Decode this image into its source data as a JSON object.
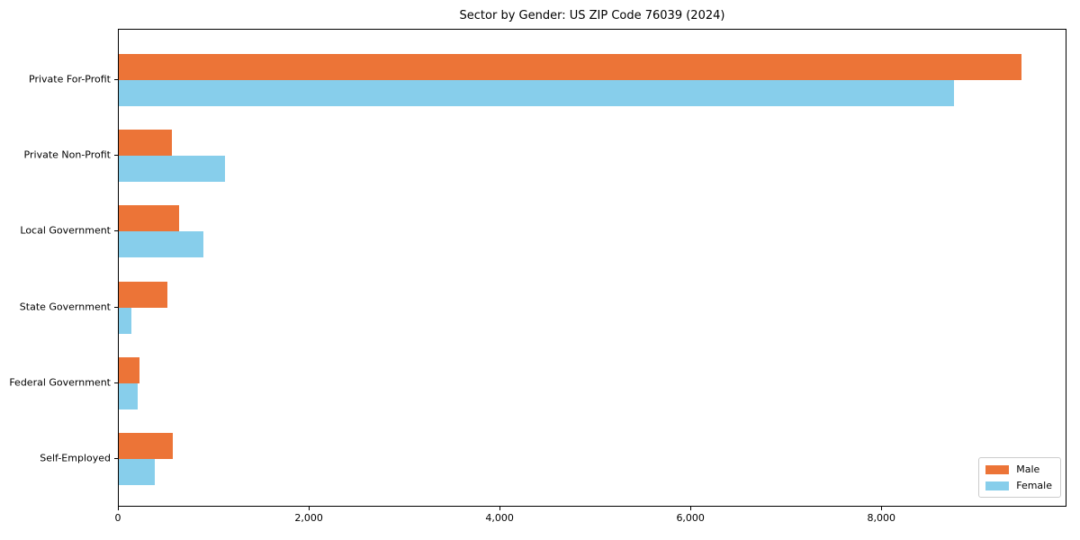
{
  "header": {
    "title": "Sector by Gender: US ZIP Code 76039 (2024)"
  },
  "chart_data": {
    "type": "bar",
    "orientation": "horizontal",
    "title": "Sector by Gender: US ZIP Code 76039 (2024)",
    "xlabel": "",
    "ylabel": "",
    "categories": [
      "Private For-Profit",
      "Private Non-Profit",
      "Local Government",
      "State Government",
      "Federal Government",
      "Self-Employed"
    ],
    "series": [
      {
        "name": "Male",
        "color": "#ec7437",
        "values": [
          9460,
          560,
          630,
          510,
          220,
          570
        ]
      },
      {
        "name": "Female",
        "color": "#87ceeb",
        "values": [
          8750,
          1110,
          890,
          130,
          200,
          380
        ]
      }
    ],
    "xlim": [
      0,
      9940
    ],
    "xticks": [
      0,
      2000,
      4000,
      6000,
      8000
    ],
    "xtick_labels": [
      "0",
      "2,000",
      "4,000",
      "6,000",
      "8,000"
    ],
    "grid": false,
    "legend_position": "lower right",
    "plot_background": "#ffffff",
    "spine_color": "#000000"
  }
}
